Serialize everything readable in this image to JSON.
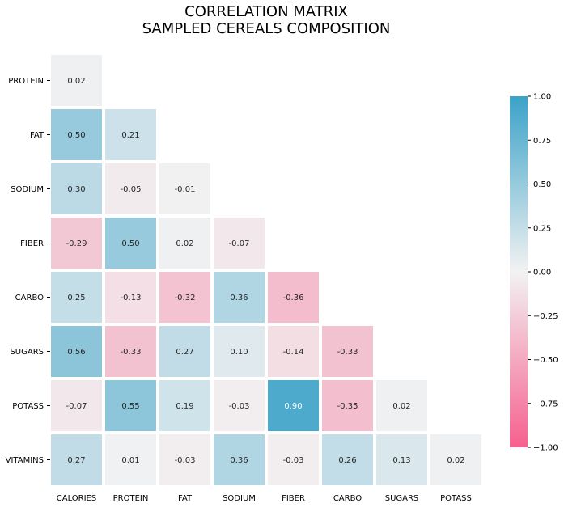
{
  "chart_data": {
    "type": "heatmap",
    "title_line1": "CORRELATION MATRIX",
    "title_line2": "SAMPLED CEREALS COMPOSITION",
    "rows": [
      "PROTEIN",
      "FAT",
      "SODIUM",
      "FIBER",
      "CARBO",
      "SUGARS",
      "POTASS",
      "VITAMINS"
    ],
    "columns": [
      "CALORIES",
      "PROTEIN",
      "FAT",
      "SODIUM",
      "FIBER",
      "CARBO",
      "SUGARS",
      "POTASS"
    ],
    "values": [
      [
        0.02
      ],
      [
        0.5,
        0.21
      ],
      [
        0.3,
        -0.05,
        -0.01
      ],
      [
        -0.29,
        0.5,
        0.02,
        -0.07
      ],
      [
        0.25,
        -0.13,
        -0.32,
        0.36,
        -0.36
      ],
      [
        0.56,
        -0.33,
        0.27,
        0.1,
        -0.14,
        -0.33
      ],
      [
        -0.07,
        0.55,
        0.19,
        -0.03,
        0.9,
        -0.35,
        0.02
      ],
      [
        0.27,
        0.01,
        -0.03,
        0.36,
        -0.03,
        0.26,
        0.13,
        0.02
      ]
    ],
    "mask": "upper-triangle",
    "vmin": -1.0,
    "vmax": 1.0,
    "colorbar_ticks": [
      "1.00",
      "0.75",
      "0.50",
      "0.25",
      "0.00",
      "−0.25",
      "−0.50",
      "−0.75",
      "−1.00"
    ],
    "colorbar_tick_values": [
      1.0,
      0.75,
      0.5,
      0.25,
      0.0,
      -0.25,
      -0.5,
      -0.75,
      -1.0
    ],
    "colormap": {
      "negative": "#f6608f",
      "center": "#f2f2f2",
      "positive": "#3ba2c8"
    },
    "grid": false,
    "colorbar_position": "right"
  }
}
